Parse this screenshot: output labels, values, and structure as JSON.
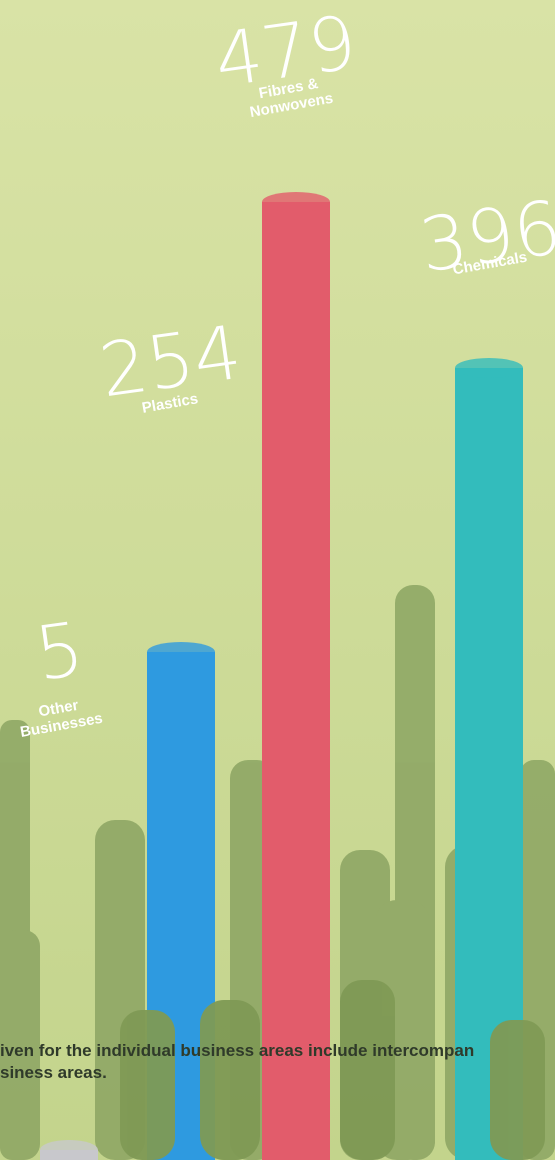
{
  "chart_data": {
    "type": "bar",
    "categories": [
      "Other Businesses",
      "Plastics",
      "Fibres & Nonwovens",
      "Chemicals"
    ],
    "values": [
      5,
      254,
      479,
      396
    ],
    "colors": [
      "#c8c8cc",
      "#2e9ae0",
      "#e25c6b",
      "#33bcbc"
    ]
  },
  "footnote": {
    "lines": [
      "iven for the individual business areas include intercompan",
      "siness areas."
    ]
  }
}
